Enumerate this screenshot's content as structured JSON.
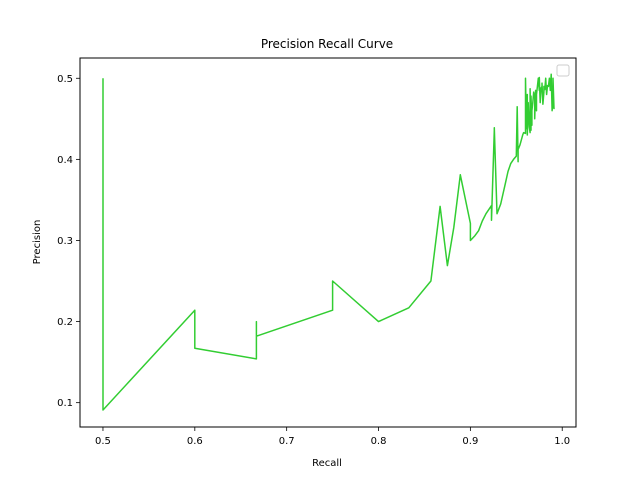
{
  "chart_data": {
    "type": "line",
    "title": "Precision Recall Curve",
    "xlabel": "Recall",
    "ylabel": "Precision",
    "xlim": [
      0.475,
      1.015
    ],
    "ylim": [
      0.07,
      0.525
    ],
    "xticks": [
      0.5,
      0.6,
      0.7,
      0.8,
      0.9,
      1.0
    ],
    "xtick_labels": [
      "0.5",
      "0.6",
      "0.7",
      "0.8",
      "0.9",
      "1.0"
    ],
    "yticks": [
      0.1,
      0.2,
      0.3,
      0.4,
      0.5
    ],
    "ytick_labels": [
      "0.1",
      "0.2",
      "0.3",
      "0.4",
      "0.5"
    ],
    "grid": false,
    "legend": {
      "placement": "top-right",
      "entries": []
    },
    "series": [
      {
        "color": "#32cd32",
        "x": [
          0.5,
          0.5,
          0.6,
          0.6,
          0.667,
          0.667,
          0.667,
          0.75,
          0.75,
          0.8,
          0.833,
          0.857,
          0.867,
          0.875,
          0.882,
          0.889,
          0.9,
          0.9,
          0.905,
          0.909,
          0.913,
          0.917,
          0.92,
          0.923,
          0.923,
          0.926,
          0.926,
          0.929,
          0.933,
          0.938,
          0.941,
          0.944,
          0.947,
          0.95,
          0.951,
          0.952,
          0.952,
          0.954,
          0.956,
          0.957,
          0.958,
          0.96,
          0.96,
          0.961,
          0.962,
          0.962,
          0.963,
          0.964,
          0.965,
          0.965,
          0.966,
          0.966,
          0.967,
          0.967,
          0.968,
          0.969,
          0.97,
          0.97,
          0.971,
          0.972,
          0.972,
          0.973,
          0.974,
          0.975,
          0.975,
          0.976,
          0.977,
          0.978,
          0.978,
          0.979,
          0.98,
          0.98,
          0.981,
          0.982,
          0.983,
          0.984,
          0.985,
          0.986,
          0.987,
          0.988,
          0.989,
          0.99,
          0.99,
          0.991
        ],
        "y": [
          0.5,
          0.091,
          0.214,
          0.167,
          0.154,
          0.2,
          0.182,
          0.214,
          0.25,
          0.2,
          0.217,
          0.25,
          0.342,
          0.269,
          0.316,
          0.381,
          0.321,
          0.3,
          0.306,
          0.312,
          0.324,
          0.333,
          0.338,
          0.343,
          0.325,
          0.436,
          0.439,
          0.333,
          0.345,
          0.37,
          0.385,
          0.395,
          0.4,
          0.404,
          0.465,
          0.397,
          0.412,
          0.418,
          0.426,
          0.43,
          0.433,
          0.432,
          0.5,
          0.438,
          0.48,
          0.43,
          0.47,
          0.44,
          0.433,
          0.487,
          0.436,
          0.478,
          0.442,
          0.46,
          0.47,
          0.483,
          0.476,
          0.45,
          0.485,
          0.46,
          0.48,
          0.49,
          0.5,
          0.485,
          0.501,
          0.47,
          0.488,
          0.49,
          0.494,
          0.468,
          0.483,
          0.49,
          0.486,
          0.5,
          0.48,
          0.491,
          0.49,
          0.5,
          0.485,
          0.505,
          0.46,
          0.47,
          0.5,
          0.462
        ]
      }
    ]
  }
}
